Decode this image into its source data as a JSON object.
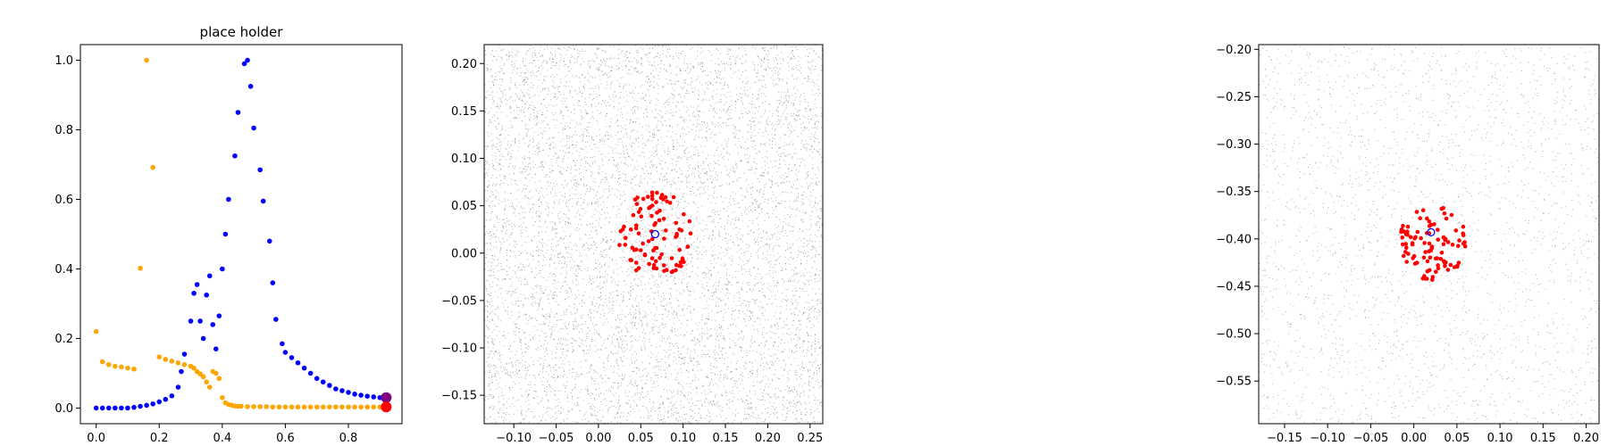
{
  "chart_data": [
    {
      "type": "scatter",
      "title": "place holder",
      "xlabel": "",
      "ylabel": "",
      "xlim": [
        -0.05,
        0.97
      ],
      "ylim": [
        -0.045,
        1.045
      ],
      "xticks": [
        0.0,
        0.2,
        0.4,
        0.6,
        0.8
      ],
      "xtick_labels": [
        "0.0",
        "0.2",
        "0.4",
        "0.6",
        "0.8"
      ],
      "yticks": [
        0.0,
        0.2,
        0.4,
        0.6,
        0.8,
        1.0
      ],
      "ytick_labels": [
        "0.0",
        "0.2",
        "0.4",
        "0.6",
        "0.8",
        "1.0"
      ],
      "grid": false,
      "series": [
        {
          "color": "#0000ff",
          "x": [
            0.0,
            0.02,
            0.04,
            0.06,
            0.08,
            0.1,
            0.12,
            0.14,
            0.16,
            0.18,
            0.2,
            0.22,
            0.24,
            0.26,
            0.27,
            0.28,
            0.3,
            0.31,
            0.32,
            0.33,
            0.34,
            0.35,
            0.36,
            0.37,
            0.38,
            0.39,
            0.4,
            0.41,
            0.42,
            0.44,
            0.45,
            0.47,
            0.48,
            0.49,
            0.5,
            0.52,
            0.53,
            0.55,
            0.56,
            0.57,
            0.59,
            0.6,
            0.62,
            0.64,
            0.66,
            0.68,
            0.7,
            0.72,
            0.74,
            0.76,
            0.78,
            0.8,
            0.82,
            0.84,
            0.86,
            0.88,
            0.9
          ],
          "y": [
            0.0,
            0.0,
            0.0,
            0.0,
            0.0,
            0.0,
            0.002,
            0.005,
            0.008,
            0.012,
            0.018,
            0.025,
            0.035,
            0.06,
            0.105,
            0.155,
            0.25,
            0.33,
            0.355,
            0.25,
            0.2,
            0.325,
            0.38,
            0.24,
            0.17,
            0.265,
            0.4,
            0.5,
            0.6,
            0.725,
            0.85,
            0.99,
            1.0,
            0.925,
            0.805,
            0.685,
            0.595,
            0.48,
            0.36,
            0.255,
            0.185,
            0.16,
            0.145,
            0.13,
            0.115,
            0.1,
            0.085,
            0.075,
            0.065,
            0.055,
            0.05,
            0.045,
            0.04,
            0.037,
            0.034,
            0.032,
            0.03
          ]
        },
        {
          "color": "#ffa500",
          "x": [
            0.0,
            0.02,
            0.04,
            0.06,
            0.08,
            0.1,
            0.12,
            0.14,
            0.16,
            0.18,
            0.2,
            0.22,
            0.24,
            0.26,
            0.28,
            0.3,
            0.31,
            0.32,
            0.33,
            0.34,
            0.35,
            0.36,
            0.37,
            0.38,
            0.39,
            0.4,
            0.41,
            0.42,
            0.43,
            0.44,
            0.45,
            0.46,
            0.48,
            0.5,
            0.52,
            0.54,
            0.56,
            0.58,
            0.6,
            0.62,
            0.64,
            0.66,
            0.68,
            0.7,
            0.72,
            0.74,
            0.76,
            0.78,
            0.8,
            0.82,
            0.84,
            0.86,
            0.88,
            0.9
          ],
          "y": [
            0.22,
            0.133,
            0.125,
            0.12,
            0.118,
            0.115,
            0.112,
            0.402,
            1.0,
            0.692,
            0.147,
            0.14,
            0.135,
            0.13,
            0.125,
            0.12,
            0.115,
            0.105,
            0.098,
            0.09,
            0.075,
            0.06,
            0.105,
            0.1,
            0.085,
            0.03,
            0.015,
            0.01,
            0.008,
            0.006,
            0.005,
            0.005,
            0.004,
            0.004,
            0.004,
            0.004,
            0.003,
            0.003,
            0.003,
            0.003,
            0.003,
            0.003,
            0.003,
            0.003,
            0.003,
            0.003,
            0.003,
            0.003,
            0.003,
            0.003,
            0.003,
            0.003,
            0.003,
            0.003
          ]
        }
      ],
      "highlight_points": [
        {
          "x": 0.92,
          "y": 0.03,
          "color": "#800080"
        },
        {
          "x": 0.92,
          "y": 0.003,
          "color": "#ff0000"
        }
      ]
    },
    {
      "type": "scatter",
      "title": "",
      "xlabel": "",
      "ylabel": "",
      "xlim": [
        -0.135,
        0.265
      ],
      "ylim": [
        -0.18,
        0.22
      ],
      "xticks": [
        -0.1,
        -0.05,
        0.0,
        0.05,
        0.1,
        0.15,
        0.2,
        0.25
      ],
      "xtick_labels": [
        "−0.10",
        "−0.05",
        "0.00",
        "0.05",
        "0.10",
        "0.15",
        "0.20",
        "0.25"
      ],
      "yticks": [
        -0.15,
        -0.1,
        -0.05,
        0.0,
        0.05,
        0.1,
        0.15,
        0.2
      ],
      "ytick_labels": [
        "−0.15",
        "−0.10",
        "−0.05",
        "0.00",
        "0.05",
        "0.10",
        "0.15",
        "0.20"
      ],
      "grid": false,
      "background_cloud": {
        "color": "#808080",
        "count": 9000
      },
      "cluster": {
        "color": "#ff0000",
        "center": [
          0.068,
          0.02
        ],
        "radius": 0.045,
        "count": 95
      },
      "center_marker": {
        "x": 0.067,
        "y": 0.02,
        "color": "#0000ff"
      }
    },
    {
      "type": "scatter",
      "title": "",
      "xlabel": "",
      "ylabel": "",
      "xlim": [
        -0.18,
        0.215
      ],
      "ylim": [
        -0.595,
        -0.195
      ],
      "xticks": [
        -0.15,
        -0.1,
        -0.05,
        0.0,
        0.05,
        0.1,
        0.15,
        0.2
      ],
      "xtick_labels": [
        "−0.15",
        "−0.10",
        "−0.05",
        "0.00",
        "0.05",
        "0.10",
        "0.15",
        "0.20"
      ],
      "yticks": [
        -0.55,
        -0.5,
        -0.45,
        -0.4,
        -0.35,
        -0.3,
        -0.25,
        -0.2
      ],
      "ytick_labels": [
        "−0.55",
        "−0.50",
        "−0.45",
        "−0.40",
        "−0.35",
        "−0.30",
        "−0.25",
        "−0.20"
      ],
      "grid": false,
      "background_cloud": {
        "color": "#808080",
        "count": 2500
      },
      "cluster": {
        "color": "#ff0000",
        "center": [
          0.022,
          -0.405
        ],
        "radius": 0.04,
        "count": 95
      },
      "center_marker": {
        "x": 0.02,
        "y": -0.393,
        "color": "#0000ff"
      }
    }
  ]
}
